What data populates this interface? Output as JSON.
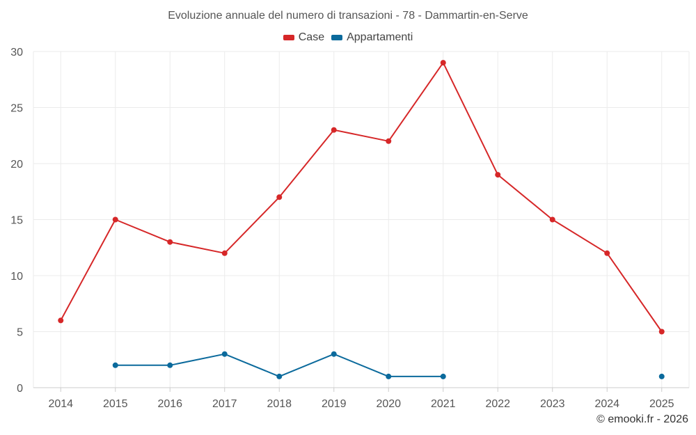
{
  "chart_data": {
    "type": "line",
    "title": "Evoluzione annuale del numero di transazioni - 78 - Dammartin-en-Serve",
    "xlabel": "",
    "ylabel": "",
    "categories": [
      "2014",
      "2015",
      "2016",
      "2017",
      "2018",
      "2019",
      "2020",
      "2021",
      "2022",
      "2023",
      "2024",
      "2025"
    ],
    "ylim": [
      0,
      30
    ],
    "yticks": [
      0,
      5,
      10,
      15,
      20,
      25,
      30
    ],
    "grid": true,
    "legend_position": "top-center",
    "series": [
      {
        "name": "Case",
        "color": "#d62728",
        "values": [
          6,
          15,
          13,
          12,
          17,
          23,
          22,
          29,
          19,
          15,
          12,
          5
        ]
      },
      {
        "name": "Appartamenti",
        "color": "#0b6a9c",
        "values": [
          null,
          2,
          2,
          3,
          1,
          3,
          1,
          1,
          null,
          null,
          null,
          1
        ]
      }
    ]
  },
  "footer": {
    "credit": "© emooki.fr - 2026"
  }
}
